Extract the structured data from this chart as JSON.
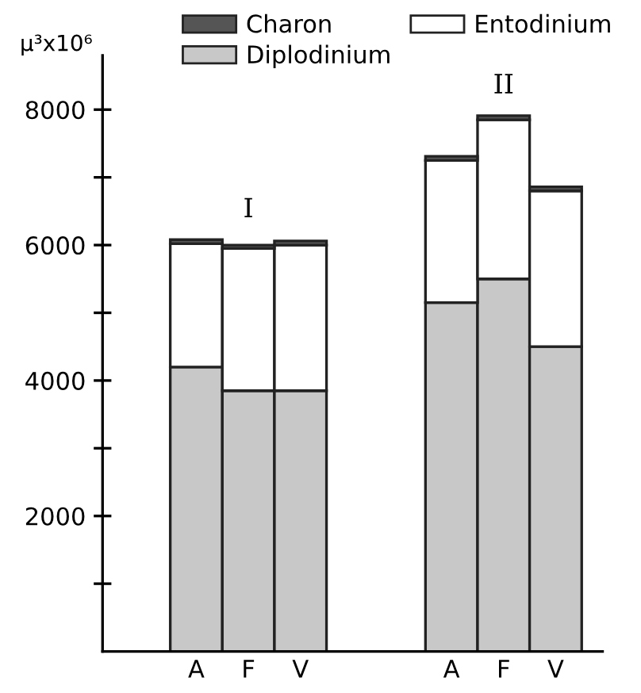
{
  "chart_data": {
    "type": "bar",
    "stacked": true,
    "ylabel": "μ³x10⁶",
    "categories": [
      "A",
      "F",
      "V",
      "A",
      "F",
      "V"
    ],
    "series": [
      {
        "name": "Diplodinium",
        "color": "#c8c8c8",
        "values": [
          4200,
          3850,
          3850,
          5150,
          5500,
          4500
        ]
      },
      {
        "name": "Entodinium",
        "color": "#ffffff",
        "values": [
          1820,
          2100,
          2150,
          2100,
          2350,
          2300
        ]
      },
      {
        "name": "Charon",
        "color": "#555555",
        "values": [
          60,
          50,
          60,
          60,
          60,
          60
        ]
      }
    ],
    "annotations": [
      "I",
      "II"
    ],
    "ylim": [
      0,
      8800
    ],
    "yticks": [
      {
        "value": 1000,
        "label": null
      },
      2000,
      {
        "value": 3000,
        "label": null
      },
      4000,
      {
        "value": 5000,
        "label": null
      },
      6000,
      {
        "value": 7000,
        "label": null
      },
      8000
    ],
    "grid": false,
    "legend": "top"
  }
}
